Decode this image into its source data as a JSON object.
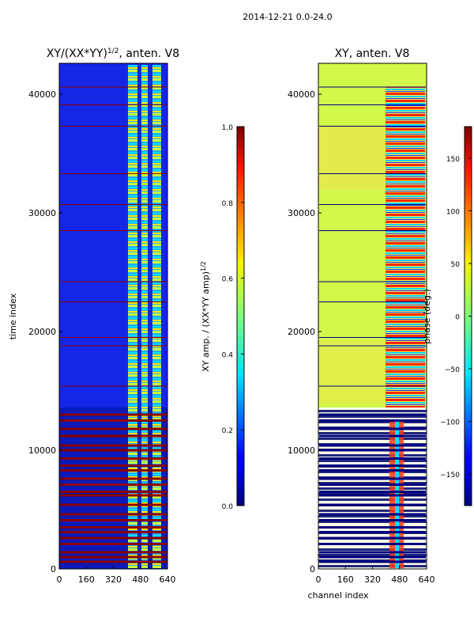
{
  "figure_title": "2014-12-21 0.0-24.0",
  "chart_data": [
    {
      "type": "heatmap",
      "title_main": "XY/(XX*YY)",
      "title_sup": "1/2",
      "title_tail": ", anten. V8",
      "xlabel": "",
      "ylabel": "time index",
      "xlim": [
        0,
        640
      ],
      "ylim": [
        0,
        42600
      ],
      "xticks": [
        0,
        160,
        320,
        480,
        640
      ],
      "yticks": [
        0,
        10000,
        20000,
        30000,
        40000
      ],
      "colorbar": {
        "label_main": "XY amp. / (XX*YY amp)",
        "label_sup": "1/2",
        "range": [
          0.0,
          1.0
        ],
        "ticks": [
          "0.0",
          "0.2",
          "0.4",
          "0.6",
          "0.8",
          "1.0"
        ],
        "tick_values": [
          0.0,
          0.2,
          0.4,
          0.6,
          0.8,
          1.0
        ]
      }
    },
    {
      "type": "heatmap",
      "title_main": "XY, anten. V8",
      "title_sup": "",
      "title_tail": "",
      "xlabel": "channel index",
      "ylabel": "",
      "xlim": [
        0,
        640
      ],
      "ylim": [
        0,
        42600
      ],
      "xticks": [
        0,
        160,
        320,
        480,
        640
      ],
      "yticks": [
        0,
        10000,
        20000,
        30000,
        40000
      ],
      "colorbar": {
        "label_main": "phase (deg.)",
        "label_sup": "",
        "range": [
          -180,
          180
        ],
        "ticks": [
          "150",
          "100",
          "50",
          "0",
          "−50",
          "−100",
          "−150"
        ],
        "tick_values": [
          150,
          100,
          50,
          0,
          -50,
          -100,
          -150
        ]
      }
    }
  ],
  "flagged_bands": [
    600,
    1000,
    1400,
    2100,
    2600,
    3100,
    3500,
    4100,
    4600,
    5400,
    6200,
    6500,
    7100,
    7600,
    8300,
    8700,
    9300,
    10000,
    10400,
    11200,
    11800,
    12500,
    13000,
    15400,
    18800,
    19500,
    22500,
    24200,
    28500,
    30700,
    33300,
    37300,
    39100,
    40600
  ]
}
